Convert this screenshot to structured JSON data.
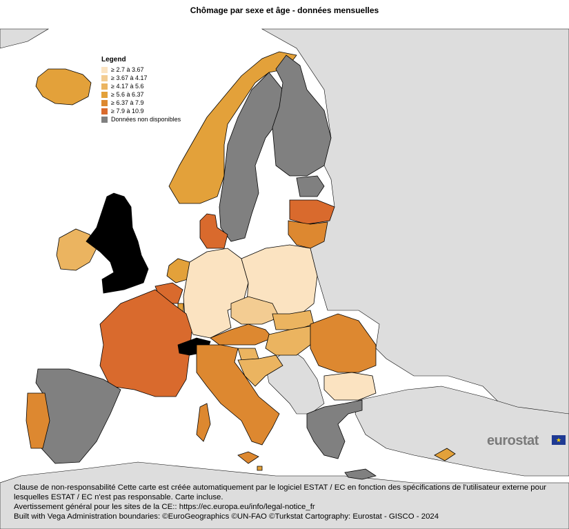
{
  "title": "Chômage par sexe et âge - données mensuelles",
  "legend": {
    "title": "Legend",
    "items": [
      {
        "label": "≥ 2.7 à 3.67",
        "color": "#fbe3c1"
      },
      {
        "label": "≥ 3.67 à 4.17",
        "color": "#f3cc92"
      },
      {
        "label": "≥ 4.17 à 5.6",
        "color": "#ebb460"
      },
      {
        "label": "≥ 5.6 à 6.37",
        "color": "#e3a13a"
      },
      {
        "label": "≥ 6.37 à 7.9",
        "color": "#dd8830"
      },
      {
        "label": "≥ 7.9 à 10.9",
        "color": "#d96a2d"
      },
      {
        "label": "Données non disponibles",
        "color": "#808080"
      }
    ]
  },
  "colors": {
    "sea": "#ffffff",
    "non_eu": "#dddddd",
    "border": "#000000"
  },
  "logo": "eurostat",
  "disclaimer": [
    "Clause de non-responsabilité Cette carte est créée automatiquement par le logiciel ESTAT / EC en fonction des spécifications de l'utilisateur externe pour lesquelles ESTAT / EC n'est pas responsable. Carte incluse.",
    "Avertissement général pour les sites de la CE:: https://ec.europa.eu/info/legal-notice_fr",
    "Built with Vega Administration boundaries: ©EuroGeographics ©UN-FAO ©Turkstat Cartography: Eurostat - GISCO - 2024"
  ]
}
